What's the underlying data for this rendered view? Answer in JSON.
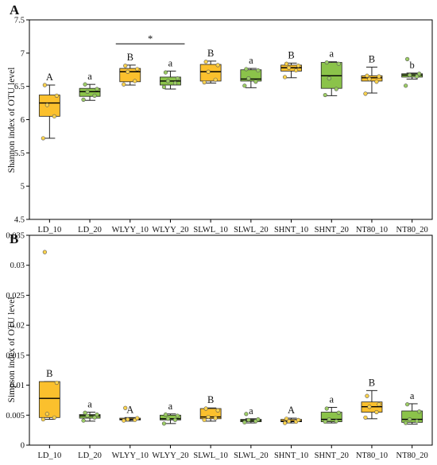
{
  "colors": {
    "yellow": "#fbc02d",
    "green": "#8bc34a",
    "point_yellow": "#fcd34d",
    "point_green": "#9ccc65",
    "line": "#222222"
  },
  "chart_data": [
    {
      "type": "box",
      "panel_letter": "A",
      "ylabel": "Shannon index of OTU level",
      "ylim": [
        4.5,
        7.5
      ],
      "yticks": [
        "4.5",
        "5",
        "5.5",
        "6",
        "6.5",
        "7",
        "7.5"
      ],
      "categories": [
        "LD_10",
        "LD_20",
        "WLYY_10",
        "WLYY_20",
        "SLWL_10",
        "SLWL_20",
        "SHNT_10",
        "SHNT_20",
        "NT80_10",
        "NT80_20"
      ],
      "group_colors": [
        "yellow",
        "green",
        "yellow",
        "green",
        "yellow",
        "green",
        "yellow",
        "green",
        "yellow",
        "green"
      ],
      "boxes": [
        {
          "whislo": 5.72,
          "q1": 6.05,
          "med": 6.25,
          "q3": 6.37,
          "whishi": 6.52
        },
        {
          "whislo": 6.29,
          "q1": 6.35,
          "med": 6.42,
          "q3": 6.47,
          "whishi": 6.53
        },
        {
          "whislo": 6.52,
          "q1": 6.57,
          "med": 6.72,
          "q3": 6.77,
          "whishi": 6.82
        },
        {
          "whislo": 6.46,
          "q1": 6.52,
          "med": 6.58,
          "q3": 6.64,
          "whishi": 6.73
        },
        {
          "whislo": 6.55,
          "q1": 6.58,
          "med": 6.72,
          "q3": 6.83,
          "whishi": 6.88
        },
        {
          "whislo": 6.48,
          "q1": 6.58,
          "med": 6.61,
          "q3": 6.75,
          "whishi": 6.77
        },
        {
          "whislo": 6.63,
          "q1": 6.73,
          "med": 6.78,
          "q3": 6.82,
          "whishi": 6.85
        },
        {
          "whislo": 6.36,
          "q1": 6.47,
          "med": 6.66,
          "q3": 6.86,
          "whishi": 6.87
        },
        {
          "whislo": 6.4,
          "q1": 6.58,
          "med": 6.63,
          "q3": 6.66,
          "whishi": 6.79
        },
        {
          "whislo": 6.61,
          "q1": 6.64,
          "med": 6.67,
          "q3": 6.69,
          "whishi": 6.7
        }
      ],
      "points": [
        [
          5.72,
          6.05,
          6.22,
          6.36,
          6.52
        ],
        [
          6.3,
          6.36,
          6.42,
          6.46,
          6.53
        ],
        [
          6.53,
          6.58,
          6.72,
          6.76,
          6.81
        ],
        [
          6.49,
          6.55,
          6.58,
          6.62,
          6.71
        ],
        [
          6.56,
          6.6,
          6.72,
          6.82,
          6.87
        ],
        [
          6.51,
          6.57,
          6.62,
          6.74,
          6.76
        ],
        [
          6.64,
          6.74,
          6.78,
          6.81,
          6.84
        ],
        [
          6.37,
          6.46,
          6.62,
          6.84,
          6.86
        ],
        [
          6.39,
          6.57,
          6.61,
          6.65,
          6.66
        ],
        [
          6.51,
          6.65,
          6.67,
          6.69,
          6.91
        ]
      ],
      "sig_letters": [
        "A",
        "a",
        "B",
        "a",
        "B",
        "a",
        "B",
        "a",
        "B",
        "b"
      ],
      "bracket": {
        "from": 2,
        "to": 3,
        "y": 7.14,
        "label": "*"
      }
    },
    {
      "type": "box",
      "panel_letter": "B",
      "ylabel": "Simpson index of OTU level",
      "ylim": [
        0,
        0.035
      ],
      "yticks": [
        "0",
        "0.005",
        "0.01",
        "0.015",
        "0.02",
        "0.025",
        "0.03",
        "0.035"
      ],
      "categories": [
        "LD_10",
        "LD_20",
        "WLYY_10",
        "WLYY_20",
        "SLWL_10",
        "SLWL_20",
        "SHNT_10",
        "SHNT_20",
        "NT80_10",
        "NT80_20"
      ],
      "group_colors": [
        "yellow",
        "green",
        "yellow",
        "green",
        "yellow",
        "green",
        "yellow",
        "green",
        "yellow",
        "green"
      ],
      "boxes": [
        {
          "whislo": 0.0043,
          "q1": 0.0046,
          "med": 0.0078,
          "q3": 0.0106,
          "whishi": 0.0106
        },
        {
          "whislo": 0.004,
          "q1": 0.0045,
          "med": 0.0049,
          "q3": 0.0051,
          "whishi": 0.0055
        },
        {
          "whislo": 0.004,
          "q1": 0.0042,
          "med": 0.0043,
          "q3": 0.0045,
          "whishi": 0.0046
        },
        {
          "whislo": 0.0036,
          "q1": 0.0042,
          "med": 0.0044,
          "q3": 0.005,
          "whishi": 0.0052
        },
        {
          "whislo": 0.004,
          "q1": 0.0044,
          "med": 0.0047,
          "q3": 0.0061,
          "whishi": 0.0062
        },
        {
          "whislo": 0.0037,
          "q1": 0.0039,
          "med": 0.0041,
          "q3": 0.0043,
          "whishi": 0.0044
        },
        {
          "whislo": 0.0037,
          "q1": 0.0039,
          "med": 0.004,
          "q3": 0.0043,
          "whishi": 0.0045
        },
        {
          "whislo": 0.0037,
          "q1": 0.0039,
          "med": 0.0043,
          "q3": 0.0055,
          "whishi": 0.0063
        },
        {
          "whislo": 0.0044,
          "q1": 0.0055,
          "med": 0.0064,
          "q3": 0.0072,
          "whishi": 0.0091
        },
        {
          "whislo": 0.0035,
          "q1": 0.0038,
          "med": 0.0043,
          "q3": 0.0057,
          "whishi": 0.0069
        }
      ],
      "points": [
        [
          0.0043,
          0.0046,
          0.0052,
          0.0104,
          0.0322
        ],
        [
          0.0041,
          0.0046,
          0.0049,
          0.0051,
          0.0054
        ],
        [
          0.0041,
          0.0042,
          0.0043,
          0.0045,
          0.0062
        ],
        [
          0.0036,
          0.0042,
          0.0044,
          0.0049,
          0.0051
        ],
        [
          0.0042,
          0.0045,
          0.0047,
          0.0058,
          0.0061
        ],
        [
          0.0038,
          0.004,
          0.0042,
          0.0043,
          0.0052
        ],
        [
          0.0037,
          0.0039,
          0.004,
          0.0042,
          0.0044
        ],
        [
          0.0039,
          0.004,
          0.0043,
          0.0054,
          0.0061
        ],
        [
          0.0046,
          0.0055,
          0.0064,
          0.0068,
          0.0082
        ],
        [
          0.0037,
          0.004,
          0.0043,
          0.0056,
          0.0068
        ]
      ],
      "sig_letters": [
        "B",
        "a",
        "A",
        "a",
        "B",
        "a",
        "A",
        "a",
        "B",
        "a"
      ]
    }
  ]
}
